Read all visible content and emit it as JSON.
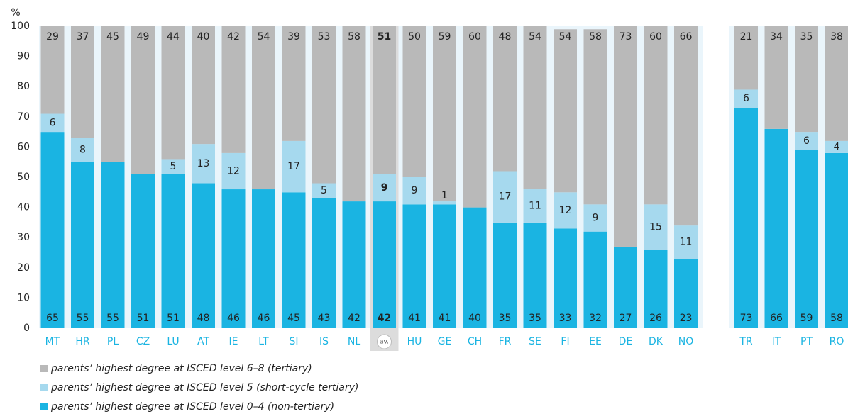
{
  "chart_data": {
    "type": "stacked_bar",
    "y_axis_label": "%",
    "categories": [
      "MT",
      "HR",
      "PL",
      "CZ",
      "LU",
      "AT",
      "IE",
      "LT",
      "SI",
      "IS",
      "NL",
      "av.",
      "HU",
      "GE",
      "CH",
      "FR",
      "SE",
      "FI",
      "EE",
      "DE",
      "DK",
      "NO",
      null,
      "TR",
      "IT",
      "PT",
      "RO"
    ],
    "highlight_index": 11,
    "ylim": [
      0,
      100
    ],
    "yticks": [
      0,
      10,
      20,
      30,
      40,
      50,
      60,
      70,
      80,
      90,
      100
    ],
    "series": [
      {
        "name": "parents’ highest degree at ISCED level 0–4 (non-tertiary)",
        "color": "#1ab4e2",
        "values": [
          65,
          55,
          55,
          51,
          51,
          48,
          46,
          46,
          45,
          43,
          42,
          42,
          41,
          41,
          40,
          35,
          35,
          33,
          32,
          27,
          26,
          23,
          null,
          73,
          66,
          59,
          58
        ]
      },
      {
        "name": "parents’ highest degree at ISCED level 5 (short-cycle tertiary)",
        "color": "#a6d9ee",
        "values": [
          6,
          8,
          null,
          null,
          5,
          13,
          12,
          null,
          17,
          5,
          null,
          9,
          9,
          1,
          null,
          17,
          11,
          12,
          9,
          null,
          15,
          11,
          null,
          6,
          null,
          6,
          4
        ]
      },
      {
        "name": "parents’ highest degree at ISCED level 6–8 (tertiary)",
        "color": "#b9b9b9",
        "values": [
          29,
          37,
          45,
          49,
          44,
          40,
          42,
          54,
          39,
          53,
          58,
          51,
          50,
          59,
          60,
          48,
          54,
          54,
          58,
          73,
          60,
          66,
          null,
          21,
          34,
          35,
          38
        ]
      }
    ]
  }
}
